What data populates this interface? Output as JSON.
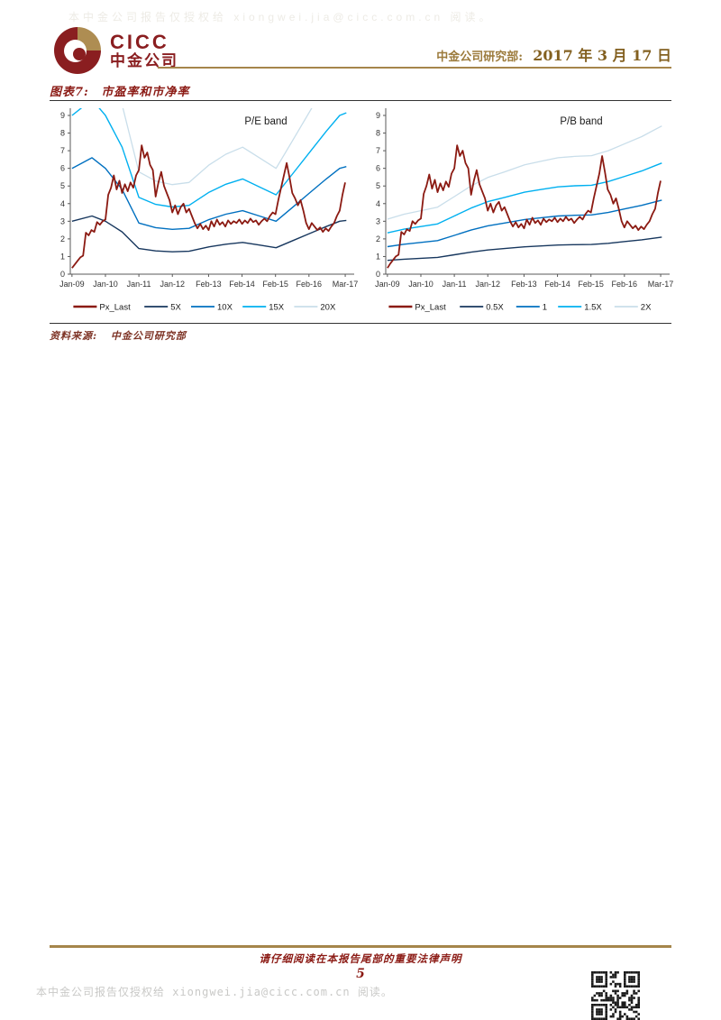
{
  "header": {
    "logo_en": "CICC",
    "logo_cn": "中金公司",
    "department": "中金公司研究部:",
    "date": "2017 年 3 月 17 日"
  },
  "figure": {
    "label": "图表7:",
    "title": "市盈率和市净率",
    "source_label": "资料来源:",
    "source": "中金公司研究部"
  },
  "footer": {
    "legal": "请仔细阅读在本报告尾部的重要法律声明",
    "page_number": "5",
    "authorization": "本中金公司报告仅授权给 xiongwei.jia@cicc.com.cn 阅读。"
  },
  "watermark": {
    "top": "本中金公司报告仅授权给 xiongwei.jia@cicc.com.cn 阅读。"
  },
  "colors": {
    "brand_maroon": "#8A1E20",
    "gold": "#A5854B",
    "dark_red_text": "#8B1A14",
    "px_last": "#8B1A12",
    "band_1": "#17375E",
    "band_2": "#0070C0",
    "band_3": "#00B0F0",
    "band_4": "#C9DEEA",
    "axis": "#595959"
  },
  "chart_data": [
    {
      "type": "line",
      "title": "P/E band",
      "xlabel": "",
      "ylabel": "",
      "ylim": [
        0,
        9
      ],
      "ytick_step": 1,
      "grid": false,
      "legend_position": "bottom",
      "x_range": [
        2008.95,
        2017.3
      ],
      "xticks": [
        {
          "v": 2009.0,
          "label": "Jan-09"
        },
        {
          "v": 2010.0,
          "label": "Jan-10"
        },
        {
          "v": 2011.0,
          "label": "Jan-11"
        },
        {
          "v": 2012.0,
          "label": "Jan-12"
        },
        {
          "v": 2013.083,
          "label": "Feb-13"
        },
        {
          "v": 2014.083,
          "label": "Feb-14"
        },
        {
          "v": 2015.083,
          "label": "Feb-15"
        },
        {
          "v": 2016.083,
          "label": "Feb-16"
        },
        {
          "v": 2017.167,
          "label": "Mar-17"
        }
      ],
      "series": [
        {
          "name": "Px_Last",
          "color": "#8B1A12",
          "width": 1.8,
          "zindex": 1,
          "x_start": 2009.0,
          "x_step": 0.083333,
          "values": [
            0.35,
            0.55,
            0.75,
            0.95,
            1.05,
            2.35,
            2.2,
            2.5,
            2.4,
            2.95,
            2.8,
            3.0,
            3.1,
            4.5,
            4.9,
            5.6,
            4.8,
            5.3,
            4.6,
            5.1,
            4.7,
            5.2,
            4.9,
            5.6,
            5.9,
            7.3,
            6.6,
            6.9,
            6.2,
            5.9,
            4.4,
            5.2,
            5.8,
            5.0,
            4.6,
            4.2,
            3.5,
            3.9,
            3.4,
            3.8,
            4.0,
            3.5,
            3.7,
            3.3,
            2.9,
            2.6,
            2.85,
            2.55,
            2.75,
            2.5,
            3.0,
            2.7,
            3.1,
            2.8,
            2.95,
            2.7,
            3.05,
            2.85,
            3.0,
            2.9,
            3.1,
            2.85,
            3.05,
            2.9,
            3.15,
            2.95,
            3.05,
            2.8,
            3.0,
            3.15,
            3.0,
            3.3,
            3.5,
            3.4,
            4.2,
            4.9,
            5.6,
            6.3,
            5.5,
            4.6,
            4.3,
            3.9,
            4.2,
            3.6,
            2.9,
            2.55,
            2.9,
            2.7,
            2.5,
            2.65,
            2.4,
            2.6,
            2.45,
            2.7,
            2.9,
            3.3,
            3.6,
            4.5,
            5.2
          ]
        },
        {
          "name": "5X",
          "color": "#17375E",
          "width": 1.4,
          "zindex": 0,
          "x": [
            2009.0,
            2009.6,
            2010.0,
            2010.5,
            2011.0,
            2011.5,
            2012.0,
            2012.5,
            2013.1,
            2013.6,
            2014.1,
            2014.6,
            2015.1,
            2015.6,
            2016.1,
            2016.6,
            2017.0,
            2017.2
          ],
          "values": [
            3.0,
            3.3,
            3.0,
            2.4,
            1.45,
            1.32,
            1.27,
            1.3,
            1.55,
            1.7,
            1.8,
            1.65,
            1.5,
            1.9,
            2.3,
            2.7,
            3.0,
            3.05
          ]
        },
        {
          "name": "10X",
          "color": "#0070C0",
          "width": 1.4,
          "zindex": 0,
          "x": [
            2009.0,
            2009.6,
            2010.0,
            2010.5,
            2011.0,
            2011.5,
            2012.0,
            2012.5,
            2013.1,
            2013.6,
            2014.1,
            2014.6,
            2015.1,
            2015.6,
            2016.1,
            2016.6,
            2017.0,
            2017.2
          ],
          "values": [
            6.0,
            6.6,
            6.0,
            4.8,
            2.9,
            2.64,
            2.54,
            2.6,
            3.1,
            3.4,
            3.6,
            3.3,
            3.0,
            3.8,
            4.6,
            5.4,
            6.0,
            6.1
          ]
        },
        {
          "name": "15X",
          "color": "#00B0F0",
          "width": 1.4,
          "zindex": 0,
          "x": [
            2009.0,
            2009.6,
            2010.0,
            2010.5,
            2011.0,
            2011.5,
            2012.0,
            2012.5,
            2013.1,
            2013.6,
            2014.1,
            2014.6,
            2015.1,
            2015.6,
            2016.1,
            2016.6,
            2017.0,
            2017.2
          ],
          "values": [
            9.0,
            9.9,
            9.0,
            7.2,
            4.35,
            3.96,
            3.81,
            3.9,
            4.65,
            5.1,
            5.4,
            4.95,
            4.5,
            5.7,
            6.9,
            8.1,
            9.0,
            9.15
          ]
        },
        {
          "name": "20X",
          "color": "#C9DEEA",
          "width": 1.3,
          "zindex": 0,
          "x": [
            2009.0,
            2009.6,
            2010.0,
            2010.5,
            2011.0,
            2011.5,
            2012.0,
            2012.5,
            2013.1,
            2013.6,
            2014.1,
            2014.6,
            2015.1,
            2015.6,
            2016.1,
            2016.6,
            2017.0,
            2017.2
          ],
          "values": [
            12.0,
            13.2,
            12.0,
            9.6,
            5.8,
            5.28,
            5.08,
            5.2,
            6.2,
            6.8,
            7.2,
            6.6,
            6.0,
            7.6,
            9.2,
            10.8,
            12.0,
            12.2
          ]
        }
      ]
    },
    {
      "type": "line",
      "title": "P/B band",
      "xlabel": "",
      "ylabel": "",
      "ylim": [
        0,
        9
      ],
      "ytick_step": 1,
      "grid": false,
      "legend_position": "bottom",
      "x_range": [
        2008.95,
        2017.3
      ],
      "xticks": [
        {
          "v": 2009.0,
          "label": "Jan-09"
        },
        {
          "v": 2010.0,
          "label": "Jan-10"
        },
        {
          "v": 2011.0,
          "label": "Jan-11"
        },
        {
          "v": 2012.0,
          "label": "Jan-12"
        },
        {
          "v": 2013.083,
          "label": "Feb-13"
        },
        {
          "v": 2014.083,
          "label": "Feb-14"
        },
        {
          "v": 2015.083,
          "label": "Feb-15"
        },
        {
          "v": 2016.083,
          "label": "Feb-16"
        },
        {
          "v": 2017.167,
          "label": "Mar-17"
        }
      ],
      "series": [
        {
          "name": "Px_Last",
          "color": "#8B1A12",
          "width": 1.8,
          "zindex": 1,
          "x_start": 2009.0,
          "x_step": 0.083333,
          "values": [
            0.35,
            0.6,
            0.8,
            1.0,
            1.1,
            2.4,
            2.25,
            2.55,
            2.45,
            3.0,
            2.85,
            3.05,
            3.15,
            4.55,
            5.0,
            5.65,
            4.85,
            5.35,
            4.65,
            5.15,
            4.75,
            5.25,
            4.95,
            5.7,
            6.0,
            7.3,
            6.7,
            7.0,
            6.3,
            6.0,
            4.5,
            5.3,
            5.9,
            5.1,
            4.7,
            4.3,
            3.6,
            4.0,
            3.5,
            3.9,
            4.1,
            3.6,
            3.8,
            3.4,
            3.0,
            2.7,
            2.95,
            2.65,
            2.85,
            2.6,
            3.1,
            2.8,
            3.2,
            2.9,
            3.05,
            2.8,
            3.15,
            2.95,
            3.1,
            3.0,
            3.2,
            2.95,
            3.15,
            3.0,
            3.25,
            3.05,
            3.15,
            2.9,
            3.1,
            3.25,
            3.1,
            3.4,
            3.6,
            3.5,
            4.3,
            5.0,
            5.7,
            6.7,
            5.8,
            4.8,
            4.5,
            4.0,
            4.3,
            3.7,
            3.0,
            2.65,
            3.0,
            2.8,
            2.6,
            2.75,
            2.5,
            2.7,
            2.55,
            2.8,
            3.0,
            3.4,
            3.7,
            4.6,
            5.3
          ]
        },
        {
          "name": "0.5X",
          "color": "#17375E",
          "width": 1.4,
          "zindex": 0,
          "x": [
            2009.0,
            2009.5,
            2010.0,
            2010.5,
            2011.0,
            2011.5,
            2012.0,
            2012.5,
            2013.1,
            2013.6,
            2014.1,
            2014.6,
            2015.1,
            2015.6,
            2016.1,
            2016.6,
            2017.0,
            2017.2
          ],
          "values": [
            0.78,
            0.85,
            0.9,
            0.95,
            1.1,
            1.25,
            1.37,
            1.45,
            1.55,
            1.6,
            1.65,
            1.67,
            1.68,
            1.75,
            1.85,
            1.95,
            2.05,
            2.1
          ]
        },
        {
          "name": "1",
          "color": "#0070C0",
          "width": 1.4,
          "zindex": 0,
          "x": [
            2009.0,
            2009.5,
            2010.0,
            2010.5,
            2011.0,
            2011.5,
            2012.0,
            2012.5,
            2013.1,
            2013.6,
            2014.1,
            2014.6,
            2015.1,
            2015.6,
            2016.1,
            2016.6,
            2017.0,
            2017.2
          ],
          "values": [
            1.56,
            1.7,
            1.8,
            1.9,
            2.2,
            2.5,
            2.74,
            2.9,
            3.1,
            3.2,
            3.3,
            3.34,
            3.36,
            3.5,
            3.7,
            3.9,
            4.1,
            4.2
          ]
        },
        {
          "name": "1.5X",
          "color": "#00B0F0",
          "width": 1.4,
          "zindex": 0,
          "x": [
            2009.0,
            2009.5,
            2010.0,
            2010.5,
            2011.0,
            2011.5,
            2012.0,
            2012.5,
            2013.1,
            2013.6,
            2014.1,
            2014.6,
            2015.1,
            2015.6,
            2016.1,
            2016.6,
            2017.0,
            2017.2
          ],
          "values": [
            2.34,
            2.55,
            2.7,
            2.85,
            3.3,
            3.75,
            4.11,
            4.35,
            4.65,
            4.8,
            4.95,
            5.01,
            5.04,
            5.25,
            5.55,
            5.85,
            6.15,
            6.3
          ]
        },
        {
          "name": "2X",
          "color": "#C9DEEA",
          "width": 1.3,
          "zindex": 0,
          "x": [
            2009.0,
            2009.5,
            2010.0,
            2010.5,
            2011.0,
            2011.5,
            2012.0,
            2012.5,
            2013.1,
            2013.6,
            2014.1,
            2014.6,
            2015.1,
            2015.6,
            2016.1,
            2016.6,
            2017.0,
            2017.2
          ],
          "values": [
            3.12,
            3.4,
            3.6,
            3.8,
            4.4,
            5.0,
            5.48,
            5.8,
            6.2,
            6.4,
            6.6,
            6.68,
            6.72,
            7.0,
            7.4,
            7.8,
            8.2,
            8.4
          ]
        }
      ]
    }
  ]
}
